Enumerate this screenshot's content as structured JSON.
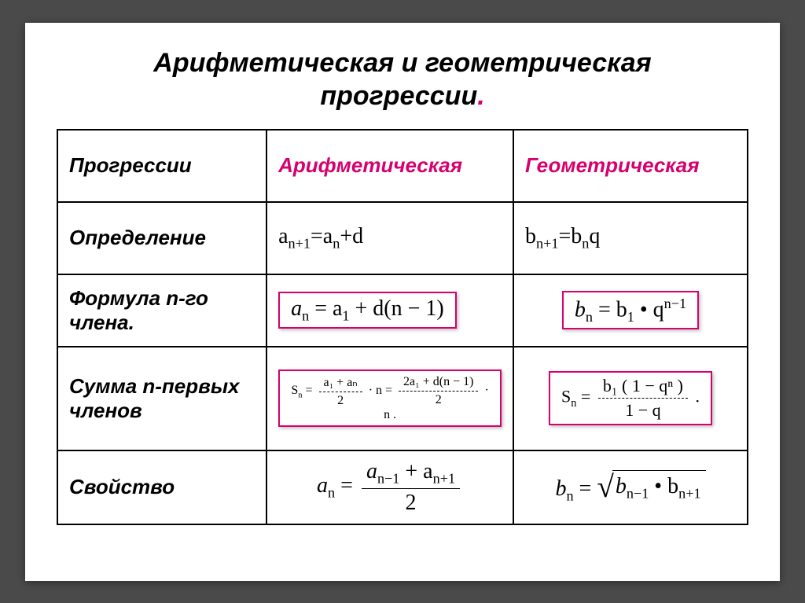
{
  "title_line1": "Арифметическая и геометрическая",
  "title_line2": "прогрессии",
  "rows": {
    "r1": "Прогрессии",
    "r2": "Определение",
    "r3": "Формула n-го члена.",
    "r4": "Сумма n-первых членов",
    "r5": "Свойство"
  },
  "headers": {
    "arith": "Арифметическая",
    "geom": "Геометрическая"
  },
  "formulas": {
    "def_a_prefix": "a",
    "def_a_sub1": "n+1",
    "def_a_eq": "=a",
    "def_a_sub2": "n",
    "def_a_tail": "+d",
    "def_b_prefix": "b",
    "def_b_sub1": "n+1",
    "def_b_eq": "=b",
    "def_b_sub2": "n",
    "def_b_tail": "q",
    "nth_a_lhs": "a",
    "nth_a_sub": "n",
    "nth_a_rhs1": " = a",
    "nth_a_rhs_sub": "1",
    "nth_a_rhs2": " + d(n − 1)",
    "nth_b_lhs": "b",
    "nth_b_sub": "n",
    "nth_b_rhs1": " = b",
    "nth_b_rhs_sub": "1",
    "nth_b_rhs2": " • q",
    "nth_b_sup": "n−1",
    "sum_a_lhs": "S",
    "sum_a_lhs_sub": "n",
    "sum_a_eq": " = ",
    "sum_a_num1": "a₁ + aₙ",
    "sum_a_den1": "2",
    "sum_a_mid": " · n  =  ",
    "sum_a_num2": "2a₁ + d(n − 1)",
    "sum_a_den2": "2",
    "sum_a_tail": " · n .",
    "sum_b_lhs": "S",
    "sum_b_lhs_sub": "n",
    "sum_b_eq": " = ",
    "sum_b_num": "b₁ ( 1 − qⁿ )",
    "sum_b_den": "1 − q",
    "sum_b_tail": " .",
    "prop_a_lhs": "a",
    "prop_a_sub": "n",
    "prop_a_eq": " = ",
    "prop_a_num_p1": "a",
    "prop_a_num_s1": "n−1",
    "prop_a_num_mid": " + a",
    "prop_a_num_s2": "n+1",
    "prop_a_den": "2",
    "prop_b_lhs": "b",
    "prop_b_sub": "n",
    "prop_b_eq": " = ",
    "prop_b_rad_p1": "b",
    "prop_b_rad_s1": "n−1",
    "prop_b_rad_mid": " • b",
    "prop_b_rad_s2": "n+1"
  },
  "colors": {
    "accent": "#d6006f",
    "text": "#000000",
    "slide_bg": "#ffffff",
    "page_bg": "#4a4a4a"
  }
}
